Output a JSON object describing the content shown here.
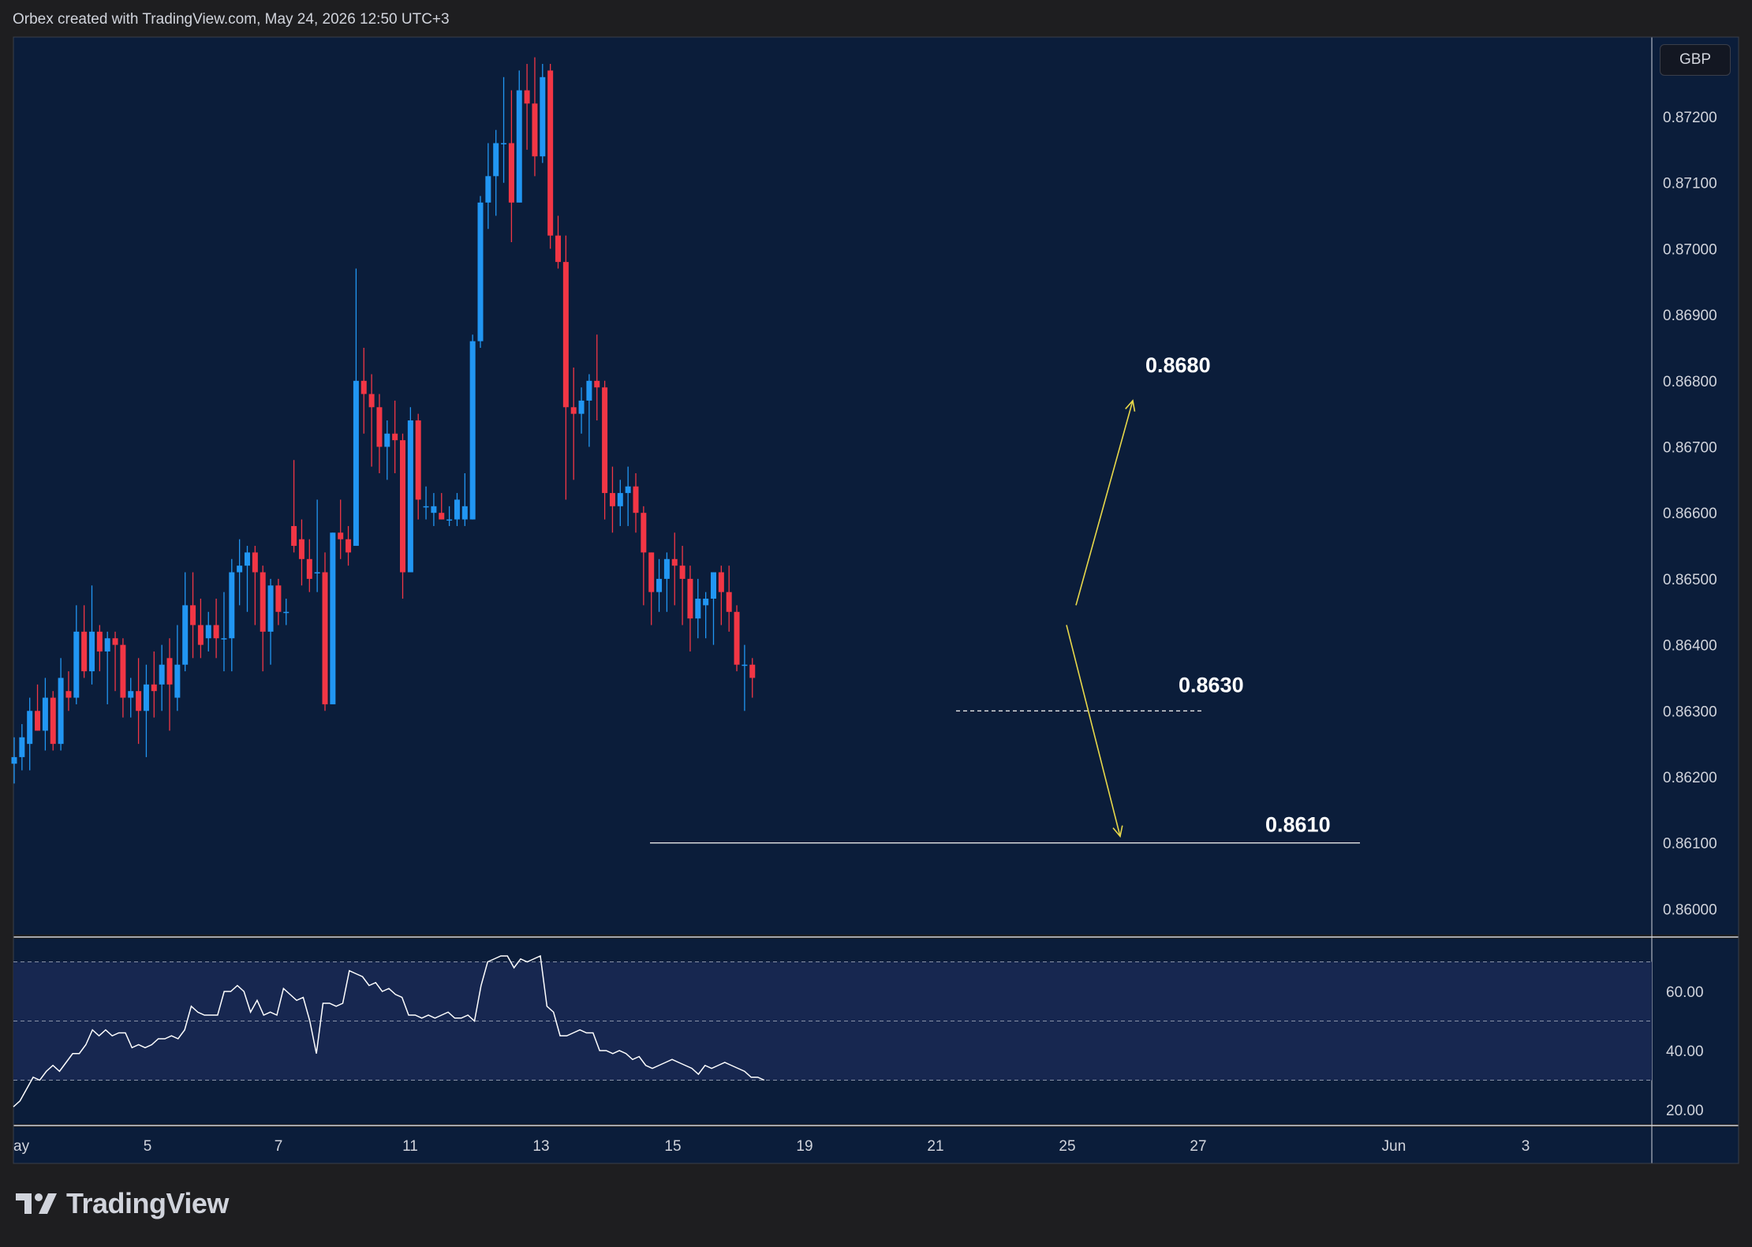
{
  "header": {
    "caption": "Orbex created with TradingView.com, May 24, 2026 12:50 UTC+3"
  },
  "currency_button": "GBP",
  "brand": {
    "name": "TradingView"
  },
  "colors": {
    "background": "#0b1d3a",
    "frame": "#1e1e20",
    "up": "#2196f3",
    "down": "#f23645",
    "annotation_arrow": "#e8d84a",
    "rsi_band": "#172750",
    "text": "#d1d4dc"
  },
  "chart_data": [
    {
      "type": "candlestick",
      "title": "",
      "ylim": [
        0.8597,
        0.8732
      ],
      "y_ticks": [
        "0.86000",
        "0.86100",
        "0.86200",
        "0.86300",
        "0.86400",
        "0.86500",
        "0.86600",
        "0.86700",
        "0.86800",
        "0.86900",
        "0.87000",
        "0.87100",
        "0.87200"
      ],
      "x_ticks": [
        "ay",
        "5",
        "7",
        "11",
        "13",
        "15",
        "19",
        "21",
        "25",
        "27",
        "Jun",
        "3"
      ],
      "ohlc": [
        [
          0.8622,
          0.8626,
          0.8619,
          0.8623
        ],
        [
          0.8623,
          0.8628,
          0.8621,
          0.8626
        ],
        [
          0.8625,
          0.8632,
          0.8621,
          0.863
        ],
        [
          0.863,
          0.8634,
          0.8627,
          0.8627
        ],
        [
          0.8627,
          0.8635,
          0.8624,
          0.8632
        ],
        [
          0.8632,
          0.8633,
          0.8624,
          0.8625
        ],
        [
          0.8625,
          0.8638,
          0.8624,
          0.8635
        ],
        [
          0.8633,
          0.8636,
          0.863,
          0.8632
        ],
        [
          0.8632,
          0.8646,
          0.8631,
          0.8642
        ],
        [
          0.8642,
          0.8646,
          0.8635,
          0.8636
        ],
        [
          0.8636,
          0.8649,
          0.8634,
          0.8642
        ],
        [
          0.8642,
          0.8643,
          0.8636,
          0.8639
        ],
        [
          0.8639,
          0.8642,
          0.8631,
          0.8641
        ],
        [
          0.8641,
          0.8642,
          0.8633,
          0.864
        ],
        [
          0.864,
          0.8641,
          0.8629,
          0.8632
        ],
        [
          0.8632,
          0.8635,
          0.8629,
          0.8633
        ],
        [
          0.8633,
          0.8638,
          0.8625,
          0.863
        ],
        [
          0.863,
          0.8637,
          0.8623,
          0.8634
        ],
        [
          0.8634,
          0.8639,
          0.8629,
          0.8633
        ],
        [
          0.8634,
          0.864,
          0.863,
          0.8637
        ],
        [
          0.8638,
          0.8641,
          0.8627,
          0.8634
        ],
        [
          0.8632,
          0.8643,
          0.863,
          0.8637
        ],
        [
          0.8637,
          0.8651,
          0.8636,
          0.8646
        ],
        [
          0.8646,
          0.8651,
          0.8638,
          0.8643
        ],
        [
          0.8643,
          0.8647,
          0.8638,
          0.864
        ],
        [
          0.8641,
          0.8645,
          0.8639,
          0.8643
        ],
        [
          0.8643,
          0.8647,
          0.8638,
          0.8641
        ],
        [
          0.8641,
          0.8648,
          0.8636,
          0.8641
        ],
        [
          0.8641,
          0.8653,
          0.8636,
          0.8651
        ],
        [
          0.8651,
          0.8656,
          0.8646,
          0.8652
        ],
        [
          0.8652,
          0.8655,
          0.8645,
          0.8654
        ],
        [
          0.8654,
          0.8655,
          0.8643,
          0.8651
        ],
        [
          0.8651,
          0.8652,
          0.8636,
          0.8642
        ],
        [
          0.8642,
          0.865,
          0.8637,
          0.8649
        ],
        [
          0.8649,
          0.865,
          0.8643,
          0.8645
        ],
        [
          0.8645,
          0.8647,
          0.8643,
          0.8645
        ],
        [
          0.8658,
          0.8668,
          0.8654,
          0.8655
        ],
        [
          0.8656,
          0.8659,
          0.8649,
          0.8653
        ],
        [
          0.8653,
          0.8656,
          0.8648,
          0.865
        ],
        [
          0.8651,
          0.8662,
          0.8648,
          0.8651
        ],
        [
          0.8651,
          0.8654,
          0.863,
          0.8631
        ],
        [
          0.8631,
          0.8657,
          0.8631,
          0.8657
        ],
        [
          0.8657,
          0.8662,
          0.8653,
          0.8656
        ],
        [
          0.8656,
          0.8658,
          0.8652,
          0.8654
        ],
        [
          0.8655,
          0.8697,
          0.8655,
          0.868
        ],
        [
          0.868,
          0.8685,
          0.8672,
          0.8678
        ],
        [
          0.8678,
          0.8681,
          0.8667,
          0.8676
        ],
        [
          0.8676,
          0.8678,
          0.8666,
          0.867
        ],
        [
          0.867,
          0.8674,
          0.8665,
          0.8672
        ],
        [
          0.8672,
          0.8677,
          0.8666,
          0.8671
        ],
        [
          0.8671,
          0.8672,
          0.8647,
          0.8651
        ],
        [
          0.8651,
          0.8676,
          0.8651,
          0.8674
        ],
        [
          0.8674,
          0.8675,
          0.8659,
          0.8662
        ],
        [
          0.8661,
          0.8664,
          0.8659,
          0.8661
        ],
        [
          0.866,
          0.8663,
          0.8658,
          0.8661
        ],
        [
          0.866,
          0.8663,
          0.8659,
          0.8659
        ],
        [
          0.8659,
          0.8661,
          0.8658,
          0.8659
        ],
        [
          0.8659,
          0.8663,
          0.8658,
          0.8662
        ],
        [
          0.8659,
          0.8666,
          0.8658,
          0.8661
        ],
        [
          0.8659,
          0.8687,
          0.8659,
          0.8686
        ],
        [
          0.8686,
          0.8708,
          0.8685,
          0.8707
        ],
        [
          0.8707,
          0.8716,
          0.8703,
          0.8711
        ],
        [
          0.8711,
          0.8718,
          0.8705,
          0.8716
        ],
        [
          0.8716,
          0.8726,
          0.871,
          0.8716
        ],
        [
          0.8716,
          0.8724,
          0.8701,
          0.8707
        ],
        [
          0.8707,
          0.8727,
          0.8707,
          0.8724
        ],
        [
          0.8724,
          0.8728,
          0.8715,
          0.8722
        ],
        [
          0.8722,
          0.8729,
          0.8711,
          0.8714
        ],
        [
          0.8714,
          0.8728,
          0.8713,
          0.8726
        ],
        [
          0.8727,
          0.8728,
          0.87,
          0.8702
        ],
        [
          0.8702,
          0.8705,
          0.8697,
          0.8698
        ],
        [
          0.8698,
          0.8702,
          0.8662,
          0.8676
        ],
        [
          0.8676,
          0.8682,
          0.8665,
          0.8675
        ],
        [
          0.8675,
          0.8679,
          0.8672,
          0.8677
        ],
        [
          0.8677,
          0.8681,
          0.867,
          0.868
        ],
        [
          0.868,
          0.8687,
          0.8674,
          0.8679
        ],
        [
          0.8679,
          0.868,
          0.8659,
          0.8663
        ],
        [
          0.8663,
          0.8667,
          0.8657,
          0.8661
        ],
        [
          0.8661,
          0.8665,
          0.8658,
          0.8663
        ],
        [
          0.8663,
          0.8667,
          0.8658,
          0.8664
        ],
        [
          0.8664,
          0.8666,
          0.8657,
          0.866
        ],
        [
          0.866,
          0.8661,
          0.8646,
          0.8654
        ],
        [
          0.8654,
          0.8654,
          0.8643,
          0.8648
        ],
        [
          0.8648,
          0.8653,
          0.8645,
          0.865
        ],
        [
          0.865,
          0.8654,
          0.8645,
          0.8653
        ],
        [
          0.8653,
          0.8657,
          0.8646,
          0.8652
        ],
        [
          0.8652,
          0.8655,
          0.8643,
          0.865
        ],
        [
          0.865,
          0.8652,
          0.8639,
          0.8644
        ],
        [
          0.8644,
          0.865,
          0.8641,
          0.8647
        ],
        [
          0.8646,
          0.8648,
          0.8641,
          0.8647
        ],
        [
          0.8647,
          0.8651,
          0.864,
          0.8651
        ],
        [
          0.8651,
          0.8652,
          0.8643,
          0.8648
        ],
        [
          0.8648,
          0.8652,
          0.8642,
          0.8645
        ],
        [
          0.8645,
          0.8646,
          0.8636,
          0.8637
        ],
        [
          0.8637,
          0.864,
          0.863,
          0.8637
        ],
        [
          0.8637,
          0.8638,
          0.8632,
          0.8635
        ]
      ],
      "levels": [
        {
          "label": "0.8680",
          "y": 0.868
        },
        {
          "label": "0.8630",
          "y": 0.863
        },
        {
          "label": "0.8610",
          "y": 0.861
        }
      ],
      "arrows": [
        {
          "name": "up-arrow",
          "from_price": 0.8646,
          "to_price": 0.8677
        },
        {
          "name": "down-arrow",
          "from_price": 0.8643,
          "to_price": 0.8611
        }
      ]
    },
    {
      "type": "line",
      "title": "",
      "series": [
        {
          "values": [
            21,
            23,
            27,
            31,
            30,
            33,
            35,
            33,
            36,
            39,
            39,
            42,
            47,
            45,
            47,
            45,
            46,
            46,
            41,
            42,
            41,
            42,
            44,
            44,
            45,
            44,
            47,
            55,
            53,
            52,
            52,
            52,
            60,
            60,
            62,
            60,
            53,
            57,
            52,
            53,
            52,
            61,
            59,
            57,
            58,
            50,
            39,
            56,
            56,
            55,
            56,
            67,
            66,
            65,
            62,
            63,
            60,
            61,
            59,
            58,
            52,
            52,
            51,
            52,
            51,
            52,
            53,
            51,
            51,
            52,
            50,
            62,
            70,
            71,
            72,
            72,
            68,
            71,
            70,
            71,
            72,
            55,
            53,
            45,
            45,
            46,
            47,
            46,
            46,
            40,
            40,
            39,
            40,
            39,
            37,
            38,
            35,
            34,
            35,
            36,
            37,
            36,
            35,
            34,
            32,
            35,
            34,
            35,
            36,
            35,
            34,
            33,
            31,
            31,
            30
          ]
        }
      ],
      "y_ticks": [
        "20.00",
        "40.00",
        "60.00"
      ],
      "ylim": [
        16,
        77
      ],
      "bands": [
        70,
        50,
        30
      ]
    }
  ]
}
